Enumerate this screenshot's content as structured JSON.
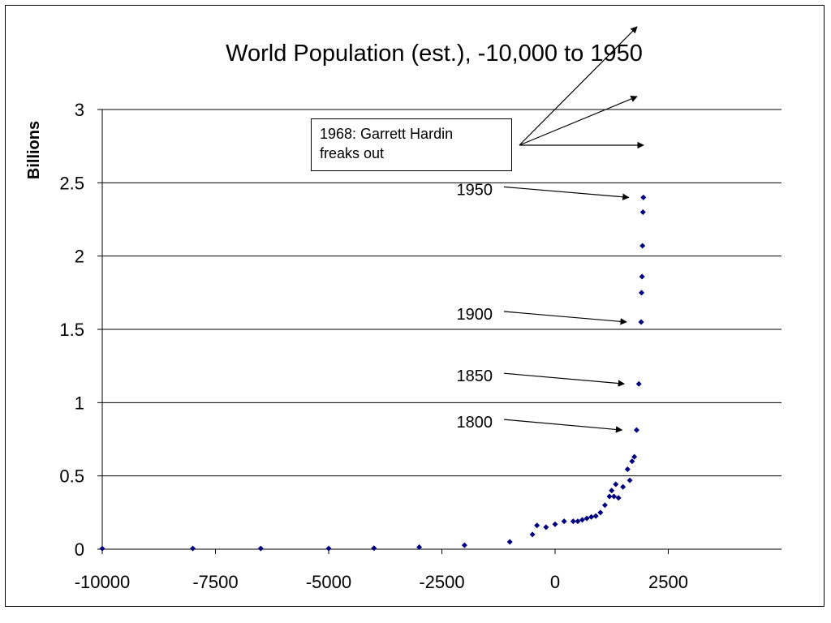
{
  "chart_data": {
    "type": "scatter",
    "title": "World Population (est.), -10,000 to 1950",
    "xlabel": "",
    "ylabel": "Billions",
    "xlim": [
      -10000,
      5000
    ],
    "ylim": [
      0,
      3
    ],
    "xticks": [
      -10000,
      -7500,
      -5000,
      -2500,
      0,
      2500
    ],
    "xtick_labels": [
      "-10000",
      "-7500",
      "-5000",
      "-2500",
      "0",
      "2500"
    ],
    "yticks": [
      0,
      0.5,
      1,
      1.5,
      2,
      2.5,
      3
    ],
    "ytick_labels": [
      "0",
      "0.5",
      "1",
      "1.5",
      "2",
      "2.5",
      "3"
    ],
    "grid": "horizontal",
    "marker_color": "#000080",
    "series": [
      {
        "points": [
          [
            -10000,
            0.004
          ],
          [
            -8000,
            0.005
          ],
          [
            -6500,
            0.005
          ],
          [
            -5000,
            0.005
          ],
          [
            -4000,
            0.007
          ],
          [
            -3000,
            0.014
          ],
          [
            -2000,
            0.027
          ],
          [
            -1000,
            0.05
          ],
          [
            -500,
            0.1
          ],
          [
            -400,
            0.162
          ],
          [
            -200,
            0.15
          ],
          [
            0,
            0.17
          ],
          [
            200,
            0.19
          ],
          [
            400,
            0.19
          ],
          [
            500,
            0.19
          ],
          [
            600,
            0.2
          ],
          [
            700,
            0.21
          ],
          [
            800,
            0.22
          ],
          [
            900,
            0.226
          ],
          [
            1000,
            0.25
          ],
          [
            1100,
            0.3
          ],
          [
            1200,
            0.36
          ],
          [
            1250,
            0.4
          ],
          [
            1300,
            0.36
          ],
          [
            1340,
            0.443
          ],
          [
            1400,
            0.35
          ],
          [
            1500,
            0.425
          ],
          [
            1600,
            0.545
          ],
          [
            1650,
            0.47
          ],
          [
            1700,
            0.6
          ],
          [
            1750,
            0.63
          ],
          [
            1800,
            0.813
          ],
          [
            1850,
            1.128
          ],
          [
            1900,
            1.55
          ],
          [
            1910,
            1.75
          ],
          [
            1920,
            1.86
          ],
          [
            1930,
            2.07
          ],
          [
            1940,
            2.3
          ],
          [
            1950,
            2.4
          ]
        ]
      }
    ],
    "annotations": [
      {
        "text": "1950",
        "x": 1950,
        "y": 2.4
      },
      {
        "text": "1900",
        "x": 1900,
        "y": 1.55
      },
      {
        "text": "1850",
        "x": 1850,
        "y": 1.128
      },
      {
        "text": "1800",
        "x": 1800,
        "y": 0.813
      }
    ],
    "callout": {
      "line1": "1968: Garrett Hardin",
      "line2": "freaks out"
    }
  }
}
